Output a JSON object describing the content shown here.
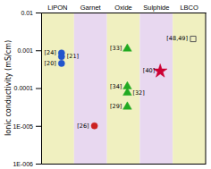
{
  "chart_data": {
    "type": "scatter",
    "ylabel": "Ionic conductivity (mS/cm)",
    "categories": [
      "LiPON",
      "Garnet",
      "Oxide",
      "Sulphide",
      "LBCO"
    ],
    "band_colors": [
      "#f0f0c0",
      "#e8d8f0",
      "#f0f0c0",
      "#e8d8f0",
      "#f0f0c0"
    ],
    "log": "y",
    "ylim": [
      1e-06,
      0.01
    ],
    "yticks": [
      {
        "value": 1e-06,
        "label": "1E-006"
      },
      {
        "value": 1e-05,
        "label": "1E-005"
      },
      0.0001,
      0.001,
      0.01
    ],
    "points": [
      {
        "x": "LiPON",
        "y": 0.00085,
        "label": "[24]",
        "color": "#2255cc",
        "marker": "circle"
      },
      {
        "x": "LiPON",
        "y": 0.00068,
        "label": "[21]",
        "color": "#2255cc",
        "marker": "circle"
      },
      {
        "x": "LiPON",
        "y": 0.00045,
        "label": "[20]",
        "color": "#2255cc",
        "marker": "circle"
      },
      {
        "x": "Garnet",
        "y": 1e-05,
        "label": "[26]",
        "color": "#cc2222",
        "marker": "circle"
      },
      {
        "x": "Oxide",
        "y": 0.0011,
        "label": "[33]",
        "color": "#22aa22",
        "marker": "triangle"
      },
      {
        "x": "Oxide",
        "y": 0.00011,
        "label": "[34]",
        "color": "#22aa22",
        "marker": "triangle"
      },
      {
        "x": "Oxide",
        "y": 7.5e-05,
        "label": "[32]",
        "color": "#22aa22",
        "marker": "triangle"
      },
      {
        "x": "Oxide",
        "y": 3.2e-05,
        "label": "[29]",
        "color": "#22aa22",
        "marker": "triangle"
      },
      {
        "x": "Sulphide",
        "y": 0.00028,
        "label": "[40]",
        "color": "#cc0033",
        "marker": "star"
      },
      {
        "x": "LBCO",
        "y": 0.002,
        "label": "[48,49]",
        "color": "#555555",
        "marker": "square",
        "open": true
      }
    ]
  }
}
